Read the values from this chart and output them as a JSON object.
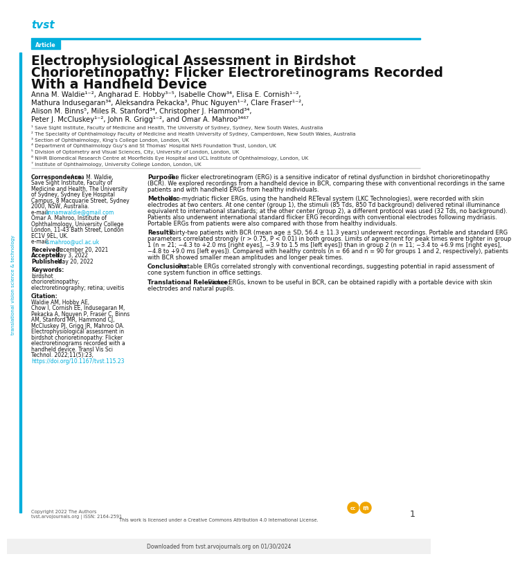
{
  "background_color": "#ffffff",
  "cyan_color": "#00aedc",
  "journal_name": "tvst",
  "badge_text": "Article",
  "title_line1": "Electrophysiological Assessment in Birdshot",
  "title_line2": "Chorioretinopathy: Flicker Electroretinograms Recorded",
  "title_line3": "With a Handheld Device",
  "authors_line1": "Anna M. Waldie¹⁻², Angharad E. Hobby³⁻⁵, Isabelle Chow³⁴, Elisa E. Cornish¹⁻²,",
  "authors_line2": "Mathura Indusegaran³⁴, Aleksandra Pekacka³, Phuc Nguyen¹⁻², Clare Fraser¹⁻²,",
  "authors_line3": "Alison M. Binns⁵, Miles R. Stanford³⁴, Christopher J. Hammond³⁴,",
  "authors_line4": "Peter J. McCluskey¹⁻², John R. Grigg¹⁻², and Omar A. Mahroo³⁴⁶⁷",
  "aff1": "¹ Save Sight Institute, Faculty of Medicine and Health, The University of Sydney, Sydney, New South Wales, Australia",
  "aff2": "² The Speciality of Ophthalmology Faculty of Medicine and Health University of Sydney, Camperdown, New South Wales, Australia",
  "aff3": "³ Section of Ophthalmology, King’s College London, London, UK",
  "aff4": "⁴ Department of Ophthalmology Guy’s and St Thomas’ Hospital NHS Foundation Trust, London, UK",
  "aff5": "⁵ Division of Optometry and Visual Sciences, City, University of London, London, UK",
  "aff6": "⁶ NIHR Biomedical Research Centre at Moorfields Eye Hospital and UCL Institute of Ophthalmology, London, UK",
  "aff7": "⁷ Institute of Ophthalmology, University College London, London, UK",
  "corr_label": "Correspondence:",
  "corr_name": "Anna M. Waldie,",
  "corr_body": "Save Sight Institute, Faculty of\nMedicine and Health, The University\nof Sydney, Sydney Eye Hospital\nCampus, 8 Macquarie Street, Sydney\n2000, NSW, Australia.\ne-mail: annamwaldie@gmail.com\nOmar A. Mahroo, Institute of\nOphthalmology, University College\nLondon, 11-43 Bath Street, London\nEC1V 9EL, UK.\ne-mail: o.mahroo@ucl.ac.uk",
  "rec_label": "Received:",
  "rec_val": "December 20, 2021",
  "acc_label": "Accepted:",
  "acc_val": "May 3, 2022",
  "pub_label": "Published:",
  "pub_val": "May 20, 2022",
  "kw_label": "Keywords:",
  "kw_val": "birdshot\nchorioretinopathy;\nelectroretinography; retina; uveitis",
  "cit_label": "Citation:",
  "cit_val": "Waldie AM, Hobby AE,\nChow I, Cornish EE, Indusegaran M,\nPekacka A, Nguyen P, Fraser C, Binns\nAM, Stanford MR, Hammond CJ,\nMcCluskey PJ, Grigg JR, Mahroo OA.\nElectrophysiological assessment in\nbirdshot chorioretinopathy: Flicker\nelectroretinograms recorded with a\nhandheld device. Transl Vis Sci\nTechnol. 2022;11(5):23,",
  "cit_doi": "https://doi.org/10.1167/tvst.115.23",
  "purpose_label": "Purpose:",
  "purpose_text": "The flicker electroretinogram (ERG) is a sensitive indicator of retinal dysfunction in birdshot chorioretinopathy (BCR). We explored recordings from a handheld device in BCR, comparing these with conventional recordings in the same patients and with handheld ERGs from healthy individuals.",
  "methods_label": "Methods:",
  "methods_text": "Non-mydriatic flicker ERGs, using the handheld RETeval system (LKC Technologies), were recorded with skin electrodes at two centers. At one center (group 1), the stimuli (85 Tds, 850 Td background) delivered retinal illuminance equivalent to international standards; at the other center (group 2), a different protocol was used (32 Tds, no background). Patients also underwent international standard flicker ERG recordings with conventional electrodes following mydriasis. Portable ERGs from patients were also compared with those from healthy individuals.",
  "results_label": "Results:",
  "results_text": "Thirty-two patients with BCR (mean age ± SD, 56.4 ± 11.3 years) underwent recordings. Portable and standard ERG parameters correlated strongly (r > 0.75, P < 0.01) in both groups. Limits of agreement for peak times were tighter in group 1 (n = 21; −4.3 to +2.0 ms [right eyes], −3.9 to 1.5 ms [left eyes]) than in group 2 (n = 11; −3.4 to +6.9 ms [right eyes], −4.8 to +9.0 ms [left eyes]). Compared with healthy controls (n = 66 and n = 90 for groups 1 and 2, respectively), patients with BCR showed smaller mean amplitudes and longer peak times.",
  "conclusions_label": "Conclusions:",
  "conclusions_text": "Portable ERGs correlated strongly with conventional recordings, suggesting potential in rapid assessment of cone system function in office settings.",
  "transrel_label": "Translational Relevance:",
  "transrel_text": "Flicker ERGs, known to be useful in BCR, can be obtained rapidly with a portable device with skin electrodes and natural pupils.",
  "copyright": "Copyright 2022 The Authors",
  "issn": "tvst.arvojournals.org | ISSN: 2164-2591",
  "license_text": "This work is licensed under a Creative Commons Attribution 4.0 International License.",
  "page_num": "1",
  "sidebar_text": "translational vision science & technology",
  "downloaded_text": "Downloaded from tvst.arvojournals.org on 01/30/2024"
}
